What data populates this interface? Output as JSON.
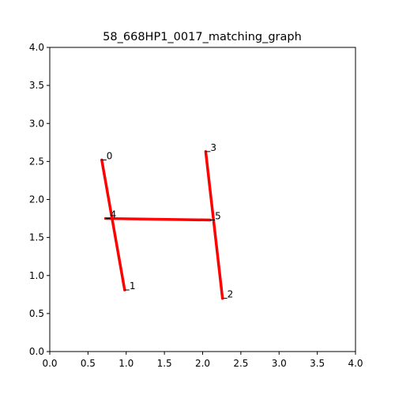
{
  "chart_data": {
    "type": "scatter",
    "title": "58_668HP1_0017_matching_graph",
    "xlabel": "",
    "ylabel": "",
    "xlim": [
      0,
      4
    ],
    "ylim": [
      0,
      4
    ],
    "grid": false,
    "x_ticks": [
      0.0,
      0.5,
      1.0,
      1.5,
      2.0,
      2.5,
      3.0,
      3.5,
      4.0
    ],
    "y_ticks": [
      0.0,
      0.5,
      1.0,
      1.5,
      2.0,
      2.5,
      3.0,
      3.5,
      4.0
    ],
    "x_tick_labels": [
      "0.0",
      "0.5",
      "1.0",
      "1.5",
      "2.0",
      "2.5",
      "3.0",
      "3.5",
      "4.0"
    ],
    "y_tick_labels": [
      "0.0",
      "0.5",
      "1.0",
      "1.5",
      "2.0",
      "2.5",
      "3.0",
      "3.5",
      "4.0"
    ],
    "nodes": [
      {
        "id": "0",
        "x": 0.68,
        "y": 2.52
      },
      {
        "id": "1",
        "x": 0.98,
        "y": 0.81
      },
      {
        "id": "2",
        "x": 2.26,
        "y": 0.7
      },
      {
        "id": "3",
        "x": 2.04,
        "y": 2.63
      },
      {
        "id": "4",
        "x": 0.73,
        "y": 1.75
      },
      {
        "id": "5",
        "x": 2.1,
        "y": 1.73
      }
    ],
    "edges": [
      {
        "from": "0",
        "to": "1"
      },
      {
        "from": "3",
        "to": "2"
      },
      {
        "from": "4",
        "to": "5"
      }
    ],
    "edge_color": "#ff0000"
  }
}
